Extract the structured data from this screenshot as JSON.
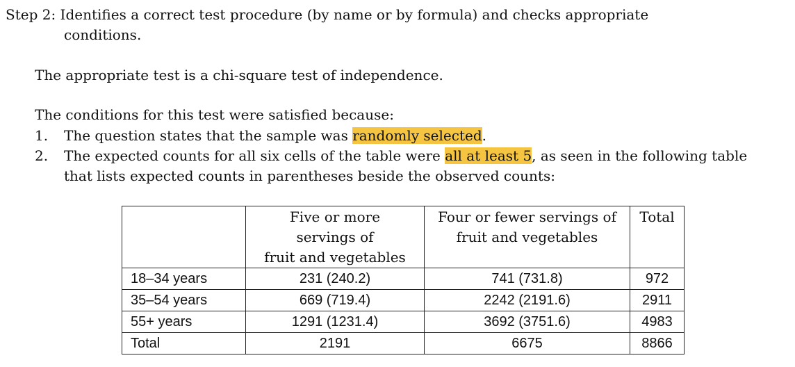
{
  "step": {
    "label": "Step 2: Identifies a correct test procedure (by name or by formula) and checks appropriate",
    "continuation": "conditions."
  },
  "test_statement": "The appropriate test is a chi-square test of independence.",
  "conditions": {
    "intro": "The conditions for this test were satisfied because:",
    "items": [
      {
        "number": "1.",
        "text_before": "The question states that the sample was ",
        "highlight": "randomly selected",
        "text_after": "."
      },
      {
        "number": "2.",
        "text_before": "The expected counts for all six cells of the table were ",
        "highlight": "all at least 5",
        "text_after": ", as seen in the following table",
        "continuation": "that lists expected counts in parentheses beside the observed counts:"
      }
    ]
  },
  "table": {
    "headers": [
      "",
      "Five or more\nservings of\nfruit and vegetables",
      "Four or fewer servings of\nfruit and vegetables",
      "Total"
    ],
    "rows": [
      [
        "18–34 years",
        "231 (240.2)",
        "741 (731.8)",
        "972"
      ],
      [
        "35–54 years",
        "669 (719.4)",
        "2242 (2191.6)",
        "2911"
      ],
      [
        "55+ years",
        "1291 (1231.4)",
        "3692 (3751.6)",
        "4983"
      ],
      [
        "Total",
        "2191",
        "6675",
        "8866"
      ]
    ]
  },
  "colors": {
    "highlight": "#f5c542",
    "text": "#111111",
    "border": "#222222"
  }
}
